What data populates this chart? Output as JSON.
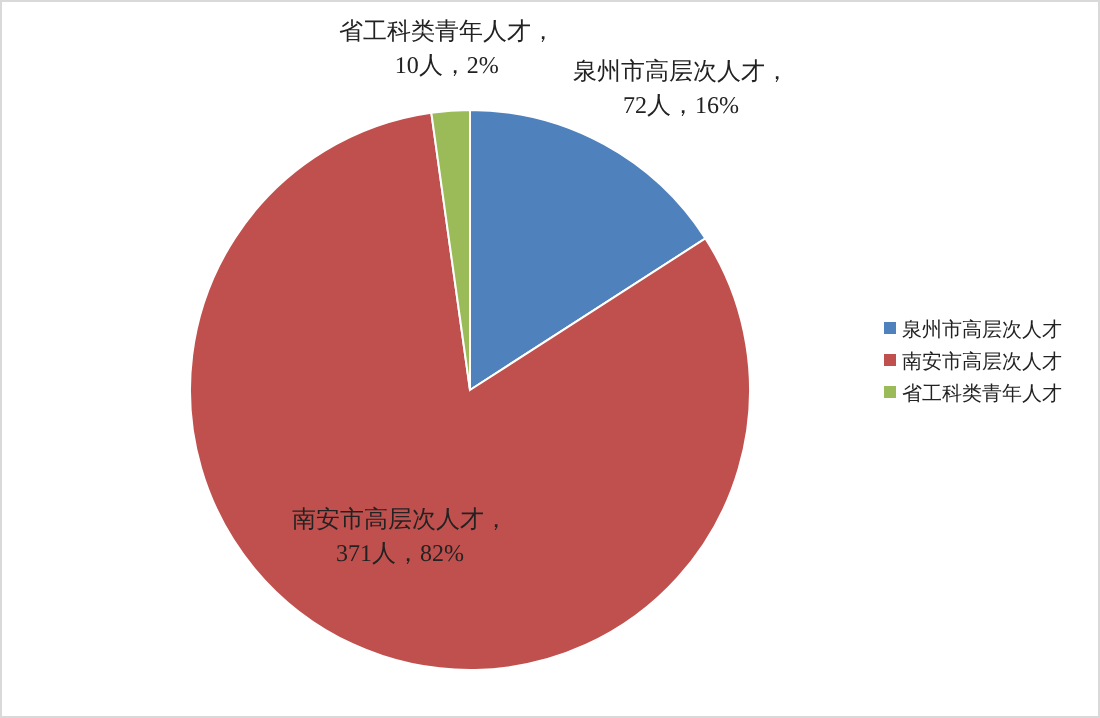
{
  "chart_data": {
    "type": "pie",
    "categories": [
      "泉州市高层次人才",
      "南安市高层次人才",
      "省工科类青年人才"
    ],
    "values": [
      72,
      371,
      10
    ],
    "colors": [
      "#4f81bd",
      "#c0504d",
      "#9bbb59"
    ],
    "value_labels": [
      "泉州市高层次人才，\n72人，16%",
      "南安市高层次人才，\n371人，82%",
      "省工科类青年人才，\n10人，2%"
    ],
    "legend": "right"
  }
}
